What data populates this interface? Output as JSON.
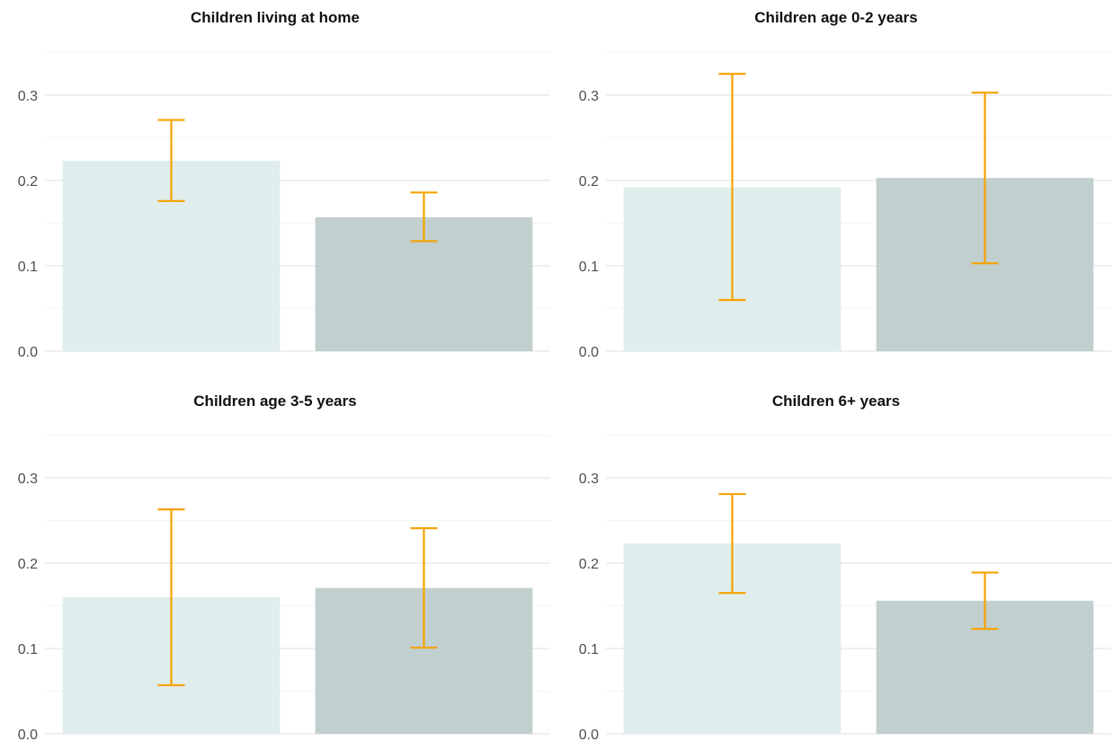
{
  "chart_data": [
    {
      "type": "bar",
      "title": "Children living at home",
      "categories": [
        "",
        ""
      ],
      "values": [
        0.223,
        0.157
      ],
      "error_low": [
        0.176,
        0.129
      ],
      "error_high": [
        0.271,
        0.186
      ],
      "yticks": [
        "0.0",
        "0.1",
        "0.2",
        "0.3"
      ],
      "ylim": [
        0,
        0.35
      ],
      "grid": true
    },
    {
      "type": "bar",
      "title": "Children age 0-2 years",
      "categories": [
        "",
        ""
      ],
      "values": [
        0.192,
        0.203
      ],
      "error_low": [
        0.06,
        0.103
      ],
      "error_high": [
        0.325,
        0.303
      ],
      "yticks": [
        "0.0",
        "0.1",
        "0.2",
        "0.3"
      ],
      "ylim": [
        0,
        0.35
      ],
      "grid": true
    },
    {
      "type": "bar",
      "title": "Children age 3-5 years",
      "categories": [
        "",
        ""
      ],
      "values": [
        0.16,
        0.171
      ],
      "error_low": [
        0.057,
        0.101
      ],
      "error_high": [
        0.263,
        0.241
      ],
      "yticks": [
        "0.0",
        "0.1",
        "0.2",
        "0.3"
      ],
      "ylim": [
        0,
        0.35
      ],
      "grid": true
    },
    {
      "type": "bar",
      "title": "Children 6+ years",
      "categories": [
        "",
        ""
      ],
      "values": [
        0.223,
        0.156
      ],
      "error_low": [
        0.165,
        0.123
      ],
      "error_high": [
        0.281,
        0.189
      ],
      "yticks": [
        "0.0",
        "0.1",
        "0.2",
        "0.3"
      ],
      "ylim": [
        0,
        0.35
      ],
      "grid": true
    }
  ],
  "colors": {
    "bar_1": "#e0eded",
    "bar_2": "#c1cfcf",
    "error_bar": "#f5a300",
    "grid_major": "#ebebeb",
    "grid_minor": "#f5f5f5"
  }
}
